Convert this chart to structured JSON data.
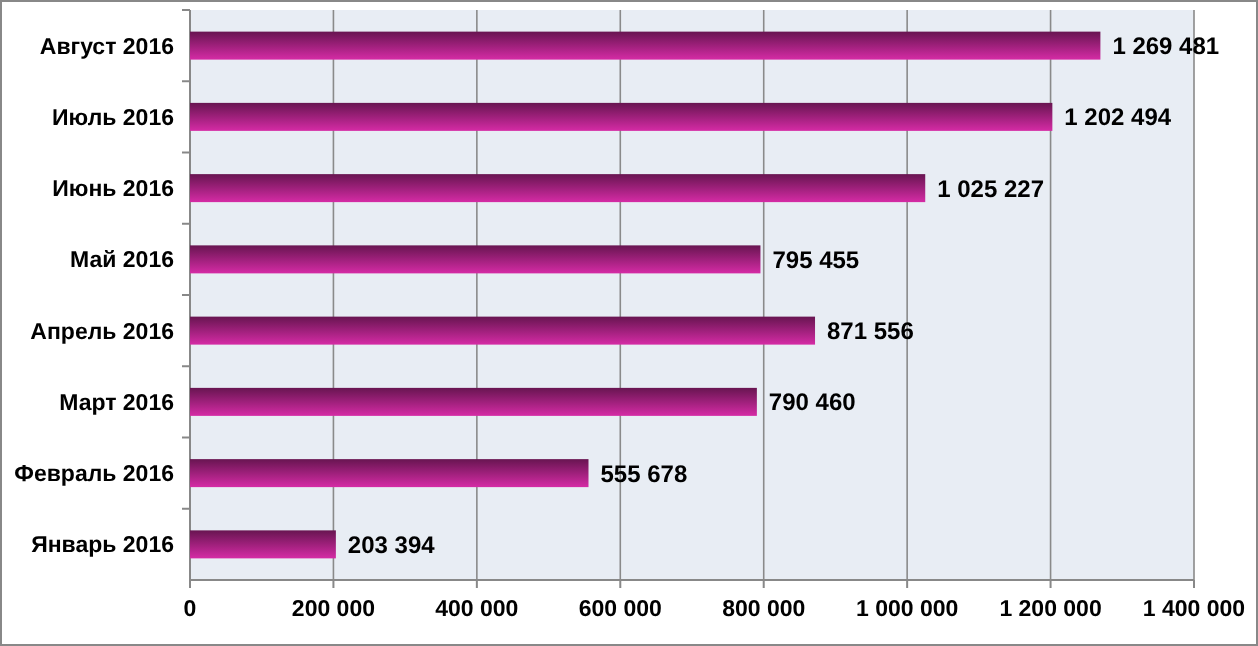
{
  "chart_data": {
    "type": "bar",
    "orientation": "horizontal",
    "categories": [
      "Август 2016",
      "Июль 2016",
      "Июнь 2016",
      "Май 2016",
      "Апрель 2016",
      "Март 2016",
      "Февраль 2016",
      "Январь 2016"
    ],
    "values": [
      1269481,
      1202494,
      1025227,
      795455,
      871556,
      790460,
      555678,
      203394
    ],
    "color": "#a0207c",
    "data_labels": true,
    "xlim": [
      0,
      1400000
    ],
    "xticks": [
      0,
      {
        "value": 200000,
        "label": "200 000"
      },
      {
        "value": 400000,
        "label": "400 000"
      },
      {
        "value": 600000,
        "label": "600 000"
      },
      {
        "value": 800000,
        "label": "800 000"
      },
      {
        "value": 1000000,
        "label": "1 000 000"
      },
      {
        "value": 1200000,
        "label": "1 200 000"
      },
      {
        "value": 1400000,
        "label": "1 400 000"
      }
    ],
    "grid": "x"
  }
}
